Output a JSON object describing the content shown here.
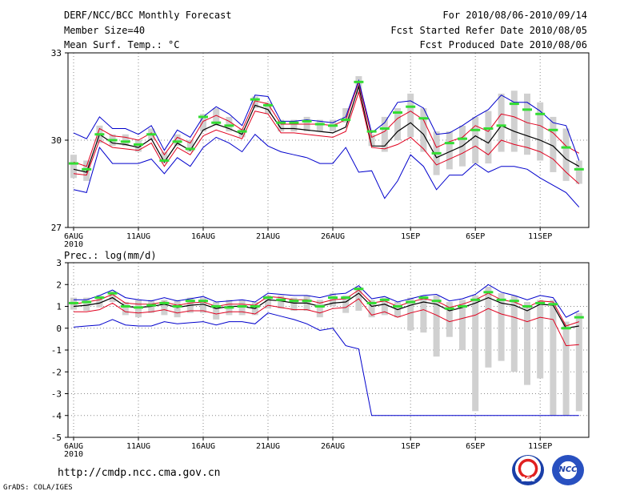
{
  "header": {
    "title": "DERF/NCC/BCC Monthly Forecast",
    "member_size": "Member Size=40",
    "variable1": "Mean Surf. Temp.: °C",
    "forecast_period": "For 2010/08/06-2010/09/14",
    "fcst_started": "Fcst Started Refer Date 2010/08/05",
    "fcst_produced": "Fcst Produced Date 2010/08/06"
  },
  "panel2_label": "Prec.: log(mm/d)",
  "footer": {
    "url": "http://cmdp.ncc.cma.gov.cn",
    "grads": "GrADS: COLA/IGES",
    "logo1_text": "BCC",
    "logo2_text": "NCC"
  },
  "colors": {
    "ensemble_mean": "#000000",
    "spread": "#e0001e",
    "extremes": "#0000cc",
    "observed": "#33dd33",
    "bars": "#d0d0d0",
    "grid": "#888888"
  },
  "chart_data": [
    {
      "type": "line",
      "title": "Mean Surf. Temp.: °C",
      "x_tick_labels": [
        "6AUG\n2010",
        "11AUG",
        "16AUG",
        "21AUG",
        "26AUG",
        "1SEP",
        "6SEP",
        "11SEP"
      ],
      "x_tick_days": [
        0,
        5,
        10,
        15,
        20,
        26,
        31,
        36
      ],
      "ylim": [
        27,
        33
      ],
      "yticks": [
        27,
        30,
        33
      ],
      "grid": true,
      "x_days": [
        0,
        1,
        2,
        3,
        4,
        5,
        6,
        7,
        8,
        9,
        10,
        11,
        12,
        13,
        14,
        15,
        16,
        17,
        18,
        19,
        20,
        21,
        22,
        23,
        24,
        25,
        26,
        27,
        28,
        29,
        30,
        31,
        32,
        33,
        34,
        35,
        36,
        37,
        38,
        39
      ],
      "series": [
        {
          "name": "ensemble mean",
          "values": [
            29.0,
            28.9,
            30.2,
            29.9,
            29.85,
            29.75,
            30.05,
            29.25,
            29.9,
            29.65,
            30.35,
            30.55,
            30.4,
            30.2,
            31.2,
            31.05,
            30.4,
            30.4,
            30.35,
            30.3,
            30.25,
            30.45,
            31.85,
            29.8,
            29.8,
            30.3,
            30.6,
            30.2,
            29.4,
            29.6,
            29.8,
            30.15,
            29.9,
            30.5,
            30.3,
            30.15,
            30.0,
            29.8,
            29.35,
            29.1
          ]
        },
        {
          "name": "upper spread",
          "values": [
            29.25,
            29.1,
            30.4,
            30.15,
            30.1,
            30.0,
            30.25,
            29.5,
            30.1,
            29.9,
            30.65,
            30.85,
            30.65,
            30.35,
            31.35,
            31.25,
            30.55,
            30.55,
            30.55,
            30.55,
            30.5,
            30.7,
            32.0,
            30.1,
            30.3,
            30.75,
            31.0,
            30.7,
            29.75,
            29.95,
            30.1,
            30.5,
            30.3,
            30.9,
            30.8,
            30.6,
            30.5,
            30.25,
            29.8,
            29.55
          ]
        },
        {
          "name": "lower spread",
          "values": [
            28.85,
            28.8,
            30.0,
            29.75,
            29.7,
            29.65,
            29.9,
            29.1,
            29.75,
            29.5,
            30.15,
            30.35,
            30.2,
            30.05,
            31.0,
            30.9,
            30.25,
            30.25,
            30.2,
            30.15,
            30.1,
            30.3,
            31.65,
            29.75,
            29.7,
            29.85,
            30.1,
            29.7,
            29.15,
            29.35,
            29.55,
            29.8,
            29.5,
            30.0,
            29.85,
            29.75,
            29.6,
            29.35,
            28.9,
            28.5
          ]
        },
        {
          "name": "ensemble max",
          "values": [
            30.25,
            30.05,
            30.8,
            30.4,
            30.4,
            30.2,
            30.5,
            29.65,
            30.35,
            30.1,
            30.8,
            31.15,
            30.9,
            30.5,
            31.55,
            31.5,
            30.65,
            30.65,
            30.7,
            30.65,
            30.6,
            30.8,
            32.05,
            30.25,
            30.6,
            31.3,
            31.35,
            31.1,
            30.2,
            30.25,
            30.5,
            30.8,
            31.05,
            31.55,
            31.3,
            31.3,
            31.0,
            30.6,
            30.5,
            29.3
          ]
        },
        {
          "name": "ensemble min",
          "values": [
            28.3,
            28.2,
            29.75,
            29.2,
            29.2,
            29.2,
            29.35,
            28.85,
            29.4,
            29.1,
            29.75,
            30.1,
            29.9,
            29.6,
            30.2,
            29.8,
            29.6,
            29.5,
            29.4,
            29.2,
            29.2,
            29.75,
            28.9,
            28.95,
            28.0,
            28.6,
            29.5,
            29.1,
            28.3,
            28.8,
            28.8,
            29.2,
            28.9,
            29.1,
            29.1,
            29.0,
            28.7,
            28.45,
            28.2,
            27.7
          ]
        },
        {
          "name": "observed (green markers)",
          "values": [
            29.2,
            29.0,
            30.2,
            30.0,
            29.95,
            29.85,
            30.2,
            29.3,
            29.95,
            29.7,
            30.8,
            30.6,
            30.5,
            30.3,
            31.4,
            31.2,
            30.6,
            30.6,
            30.65,
            30.55,
            30.5,
            30.7,
            32.0,
            30.3,
            30.4,
            30.95,
            31.15,
            30.75,
            29.55,
            29.9,
            30.05,
            30.35,
            30.4,
            30.5,
            31.25,
            31.05,
            30.9,
            30.35,
            29.75,
            29.0
          ]
        }
      ],
      "bars": {
        "name": "member range",
        "low": [
          28.7,
          28.6,
          29.9,
          29.8,
          29.8,
          29.6,
          30.0,
          29.2,
          29.8,
          29.6,
          30.3,
          30.5,
          30.3,
          30.1,
          31.1,
          30.9,
          30.3,
          30.3,
          30.3,
          30.3,
          30.3,
          30.6,
          31.6,
          29.8,
          29.6,
          30.0,
          30.1,
          29.6,
          28.8,
          29.0,
          29.1,
          29.2,
          29.2,
          29.6,
          29.6,
          29.5,
          29.3,
          28.9,
          28.6,
          28.5
        ],
        "high": [
          29.5,
          29.3,
          30.5,
          30.2,
          30.2,
          30.0,
          30.4,
          29.6,
          30.2,
          30.0,
          30.9,
          31.1,
          30.8,
          30.4,
          31.5,
          31.3,
          30.7,
          30.7,
          30.8,
          30.7,
          30.7,
          31.1,
          32.2,
          30.2,
          30.8,
          31.1,
          31.6,
          31.1,
          30.3,
          30.3,
          30.5,
          30.8,
          31.0,
          31.6,
          31.7,
          31.6,
          31.3,
          30.8,
          30.4,
          29.3
        ]
      }
    },
    {
      "type": "line",
      "title": "Prec.: log(mm/d)",
      "x_tick_labels": [
        "6AUG\n2010",
        "11AUG",
        "16AUG",
        "21AUG",
        "26AUG",
        "1SEP",
        "6SEP",
        "11SEP"
      ],
      "x_tick_days": [
        0,
        5,
        10,
        15,
        20,
        26,
        31,
        36
      ],
      "ylim": [
        -5,
        3
      ],
      "yticks": [
        -5,
        -4,
        -3,
        -2,
        -1,
        0,
        1,
        2,
        3
      ],
      "grid": true,
      "x_days": [
        0,
        1,
        2,
        3,
        4,
        5,
        6,
        7,
        8,
        9,
        10,
        11,
        12,
        13,
        14,
        15,
        16,
        17,
        18,
        19,
        20,
        21,
        22,
        23,
        24,
        25,
        26,
        27,
        28,
        29,
        30,
        31,
        32,
        33,
        34,
        35,
        36,
        37,
        38,
        39
      ],
      "series": [
        {
          "name": "ensemble mean",
          "values": [
            1.0,
            1.05,
            1.15,
            1.4,
            1.0,
            0.95,
            1.0,
            1.1,
            0.95,
            1.05,
            1.1,
            0.9,
            1.0,
            1.0,
            0.9,
            1.3,
            1.25,
            1.15,
            1.15,
            1.0,
            1.15,
            1.2,
            1.6,
            1.0,
            1.1,
            0.85,
            1.05,
            1.2,
            1.1,
            0.8,
            0.95,
            1.15,
            1.4,
            1.15,
            1.05,
            0.8,
            1.1,
            1.05,
            0.0,
            0.1
          ]
        },
        {
          "name": "upper spread",
          "values": [
            1.1,
            1.2,
            1.3,
            1.55,
            1.15,
            1.1,
            1.1,
            1.2,
            1.05,
            1.15,
            1.2,
            1.0,
            1.1,
            1.1,
            1.05,
            1.45,
            1.4,
            1.3,
            1.3,
            1.15,
            1.3,
            1.35,
            1.75,
            1.15,
            1.25,
            1.0,
            1.2,
            1.35,
            1.25,
            0.95,
            1.1,
            1.3,
            1.6,
            1.3,
            1.2,
            0.95,
            1.25,
            1.2,
            0.1,
            0.3
          ]
        },
        {
          "name": "lower spread",
          "values": [
            0.75,
            0.75,
            0.85,
            1.15,
            0.75,
            0.7,
            0.75,
            0.85,
            0.7,
            0.8,
            0.8,
            0.65,
            0.75,
            0.75,
            0.65,
            1.05,
            0.95,
            0.85,
            0.85,
            0.7,
            0.9,
            0.95,
            1.35,
            0.6,
            0.75,
            0.5,
            0.7,
            0.85,
            0.6,
            0.3,
            0.45,
            0.6,
            0.9,
            0.65,
            0.5,
            0.3,
            0.5,
            0.4,
            -0.8,
            -0.75
          ]
        },
        {
          "name": "ensemble max",
          "values": [
            1.3,
            1.3,
            1.5,
            1.75,
            1.4,
            1.3,
            1.25,
            1.4,
            1.25,
            1.35,
            1.45,
            1.2,
            1.25,
            1.3,
            1.2,
            1.6,
            1.55,
            1.5,
            1.5,
            1.4,
            1.55,
            1.6,
            1.95,
            1.35,
            1.45,
            1.2,
            1.35,
            1.5,
            1.55,
            1.25,
            1.35,
            1.55,
            2.0,
            1.65,
            1.5,
            1.3,
            1.5,
            1.4,
            0.5,
            0.8
          ]
        },
        {
          "name": "ensemble min",
          "values": [
            0.05,
            0.1,
            0.15,
            0.4,
            0.15,
            0.1,
            0.1,
            0.3,
            0.2,
            0.25,
            0.3,
            0.15,
            0.3,
            0.3,
            0.2,
            0.7,
            0.55,
            0.4,
            0.2,
            -0.1,
            0.0,
            -0.8,
            -0.95,
            -4.0,
            -4.0,
            -4.0,
            -4.0,
            -4.0,
            -4.0,
            -4.0,
            -4.0,
            -4.0,
            -4.0,
            -4.0,
            -4.0,
            -4.0,
            -4.0,
            -4.0,
            -4.0,
            -4.0
          ]
        },
        {
          "name": "observed (green markers)",
          "values": [
            1.15,
            1.2,
            1.4,
            1.6,
            1.0,
            0.95,
            1.05,
            1.15,
            1.0,
            1.25,
            1.25,
            1.0,
            0.95,
            1.0,
            1.0,
            1.4,
            1.3,
            1.25,
            1.25,
            1.0,
            1.4,
            1.4,
            1.8,
            1.15,
            1.3,
            1.0,
            1.2,
            1.4,
            1.25,
            0.9,
            1.0,
            1.3,
            1.65,
            1.3,
            1.25,
            1.0,
            1.15,
            1.1,
            0.0,
            0.5
          ]
        }
      ],
      "bars": {
        "name": "member range",
        "low": [
          0.85,
          0.8,
          0.95,
          1.2,
          0.6,
          0.5,
          0.7,
          0.6,
          0.5,
          0.7,
          0.7,
          0.4,
          0.6,
          0.6,
          0.6,
          0.9,
          0.9,
          0.8,
          0.8,
          0.5,
          1.0,
          0.7,
          0.8,
          0.5,
          0.6,
          0.5,
          -0.1,
          -0.2,
          -1.3,
          -0.4,
          -1.0,
          -3.8,
          -1.8,
          -1.5,
          -2.0,
          -2.6,
          -2.3,
          -4.0,
          -4.0,
          -3.8
        ],
        "high": [
          1.4,
          1.4,
          1.5,
          1.7,
          1.2,
          1.3,
          1.3,
          1.3,
          1.3,
          1.4,
          1.4,
          1.2,
          1.3,
          1.3,
          1.2,
          1.5,
          1.5,
          1.4,
          1.5,
          1.3,
          1.6,
          1.5,
          1.9,
          1.3,
          1.4,
          1.2,
          1.4,
          1.5,
          1.5,
          1.2,
          1.3,
          1.5,
          1.9,
          1.6,
          1.5,
          1.2,
          1.3,
          1.3,
          0.3,
          0.7
        ]
      }
    }
  ]
}
